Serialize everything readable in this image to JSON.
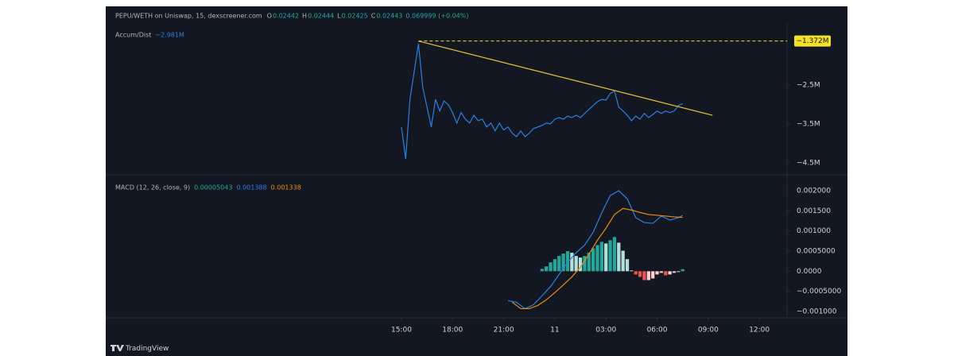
{
  "header": {
    "title": "PEPU/WETH on Uniswap, 15, dexscreener.com",
    "ohlc": [
      {
        "key": "O",
        "value": 0.02442
      },
      {
        "key": "H",
        "value": 0.02444
      },
      {
        "key": "L",
        "value": 0.02425
      },
      {
        "key": "C",
        "value": 0.02443
      }
    ],
    "change": "0.069999 (+0.04%)"
  },
  "footer": {
    "brand": "TradingView"
  },
  "chart_data": [
    {
      "type": "line",
      "title": "Accum/Dist",
      "legend_value": {
        "value": -2.981,
        "label": "−2.981M"
      },
      "xlim": [
        -69.4,
        90.5
      ],
      "ylim": [
        -4.81,
        -0.93
      ],
      "yticks": [
        {
          "value": -2.5,
          "label": "−2.5M"
        },
        {
          "value": -3.5,
          "label": "−3.5M"
        },
        {
          "value": -4.5,
          "label": "−4.5M"
        }
      ],
      "grid": false,
      "series": [
        {
          "type": "line",
          "color": "#2e7fe0",
          "x": [
            0,
            1,
            2,
            3,
            4,
            5,
            6,
            7,
            8,
            9,
            10,
            11,
            12,
            13,
            14,
            15,
            16,
            17,
            18,
            19,
            20,
            21,
            22,
            23,
            24,
            25,
            26,
            27,
            28,
            29,
            30,
            31,
            32,
            33,
            34,
            35,
            36,
            37,
            38,
            39,
            40,
            41,
            42,
            43,
            44,
            45,
            46,
            47,
            48,
            49,
            50,
            51,
            52,
            53,
            54,
            55,
            56,
            57,
            58,
            59,
            60,
            61,
            62,
            63,
            64,
            65,
            66
          ],
          "values": [
            -3.58,
            -4.4,
            -2.87,
            -2.15,
            -1.44,
            -2.56,
            -3.07,
            -3.58,
            -2.87,
            -3.17,
            -2.91,
            -3.01,
            -3.21,
            -3.48,
            -3.21,
            -3.38,
            -3.48,
            -3.28,
            -3.42,
            -3.38,
            -3.58,
            -3.48,
            -3.68,
            -3.48,
            -3.66,
            -3.58,
            -3.74,
            -3.83,
            -3.68,
            -3.83,
            -3.74,
            -3.62,
            -3.58,
            -3.54,
            -3.48,
            -3.5,
            -3.38,
            -3.34,
            -3.38,
            -3.3,
            -3.34,
            -3.28,
            -3.34,
            -3.23,
            -3.13,
            -3.03,
            -2.93,
            -2.87,
            -2.89,
            -2.72,
            -2.66,
            -3.07,
            -3.17,
            -3.28,
            -3.42,
            -3.3,
            -3.38,
            -3.23,
            -3.34,
            -3.26,
            -3.17,
            -3.23,
            -3.17,
            -3.21,
            -3.17,
            -3.03,
            -2.981
          ]
        }
      ],
      "trendline": {
        "color": "#e8c23a",
        "x": [
          4,
          73
        ],
        "values": [
          -1.372,
          -3.28
        ]
      },
      "price_label": {
        "value": -1.372,
        "label": "−1.372M",
        "color": "#f5e028"
      }
    },
    {
      "type": "line",
      "title": "MACD (12, 26, close, 9)",
      "xlim": [
        -69.4,
        90.5
      ],
      "ylim": [
        -0.001158,
        0.002356
      ],
      "xticks": [
        {
          "value": 0,
          "label": "15:00"
        },
        {
          "value": 12,
          "label": "18:00"
        },
        {
          "value": 24,
          "label": "21:00"
        },
        {
          "value": 36,
          "label": "11"
        },
        {
          "value": 48,
          "label": "03:00"
        },
        {
          "value": 60,
          "label": "06:00"
        },
        {
          "value": 72,
          "label": "09:00"
        },
        {
          "value": 84,
          "label": "12:00"
        }
      ],
      "yticks": [
        {
          "value": 0.002,
          "label": "0.002000"
        },
        {
          "value": 0.0015,
          "label": "0.001500"
        },
        {
          "value": 0.001,
          "label": "0.001000"
        },
        {
          "value": 0.0005,
          "label": "0.0005000"
        },
        {
          "value": 0,
          "label": "0.0000"
        },
        {
          "value": -0.0005,
          "label": "−0.0005000"
        },
        {
          "value": -0.001,
          "label": "−0.001000"
        }
      ],
      "grid": false,
      "series": [
        {
          "type": "bar",
          "legend_value": 5.043e-05,
          "color": "#26a69a",
          "x": [
            33,
            34,
            35,
            36,
            37,
            38,
            39,
            40,
            41,
            42,
            43,
            44,
            45,
            46,
            47,
            48,
            49,
            50,
            51,
            52,
            53,
            54,
            55,
            56,
            57,
            58,
            59,
            60,
            61,
            62,
            63,
            64,
            65,
            66
          ],
          "values": [
            6e-05,
            0.00012,
            0.00022,
            0.0003,
            0.00038,
            0.00044,
            0.0005,
            0.00046,
            0.00038,
            0.00034,
            0.00038,
            0.00046,
            0.00057,
            0.00065,
            0.00073,
            0.00069,
            0.00077,
            0.00085,
            0.00071,
            0.00051,
            0.0003,
            2e-05,
            -8e-05,
            -0.00014,
            -0.00022,
            -0.00022,
            -0.00018,
            -8e-05,
            -4e-05,
            -0.0001,
            -8e-05,
            -4e-05,
            -2e-05,
            5.043e-05
          ],
          "colors": [
            "#26a69a",
            "#26a69a",
            "#26a69a",
            "#26a69a",
            "#26a69a",
            "#26a69a",
            "#26a69a",
            "#b2dfdb",
            "#b2dfdb",
            "#b2dfdb",
            "#26a69a",
            "#26a69a",
            "#26a69a",
            "#26a69a",
            "#26a69a",
            "#b2dfdb",
            "#26a69a",
            "#26a69a",
            "#b2dfdb",
            "#b2dfdb",
            "#b2dfdb",
            "#b2dfdb",
            "#ef5350",
            "#ef5350",
            "#ef5350",
            "#ffcdd2",
            "#ffcdd2",
            "#ffcdd2",
            "#ffcdd2",
            "#ef5350",
            "#ffcdd2",
            "#ffcdd2",
            "#ffcdd2",
            "#26a69a"
          ]
        },
        {
          "type": "line",
          "legend_value": 0.001388,
          "color": "#2e7fe0",
          "x": [
            25,
            27,
            29,
            31,
            33,
            35,
            37,
            39,
            41,
            43,
            45,
            47,
            49,
            51,
            53,
            55,
            57,
            59,
            61,
            63,
            65,
            66
          ],
          "values": [
            -0.00073,
            -0.00077,
            -0.00093,
            -0.00083,
            -0.00061,
            -0.00038,
            -8e-05,
            0.00022,
            0.00046,
            0.00065,
            0.00097,
            0.00145,
            0.00188,
            0.002,
            0.0018,
            0.00133,
            0.00121,
            0.00119,
            0.00137,
            0.00127,
            0.00133,
            0.001388
          ]
        },
        {
          "type": "line",
          "legend_value": 0.001338,
          "color": "#f0891a",
          "x": [
            26,
            28,
            30,
            32,
            34,
            36,
            38,
            40,
            42,
            44,
            46,
            48,
            50,
            52,
            54,
            56,
            58,
            60,
            62,
            64,
            66
          ],
          "values": [
            -0.00077,
            -0.00093,
            -0.00093,
            -0.00085,
            -0.00071,
            -0.00053,
            -0.00034,
            -0.00014,
            0.0001,
            0.00042,
            0.00077,
            0.00107,
            0.00141,
            0.00156,
            0.00152,
            0.00146,
            0.00141,
            0.00139,
            0.00137,
            0.00135,
            0.001338
          ]
        }
      ]
    }
  ]
}
